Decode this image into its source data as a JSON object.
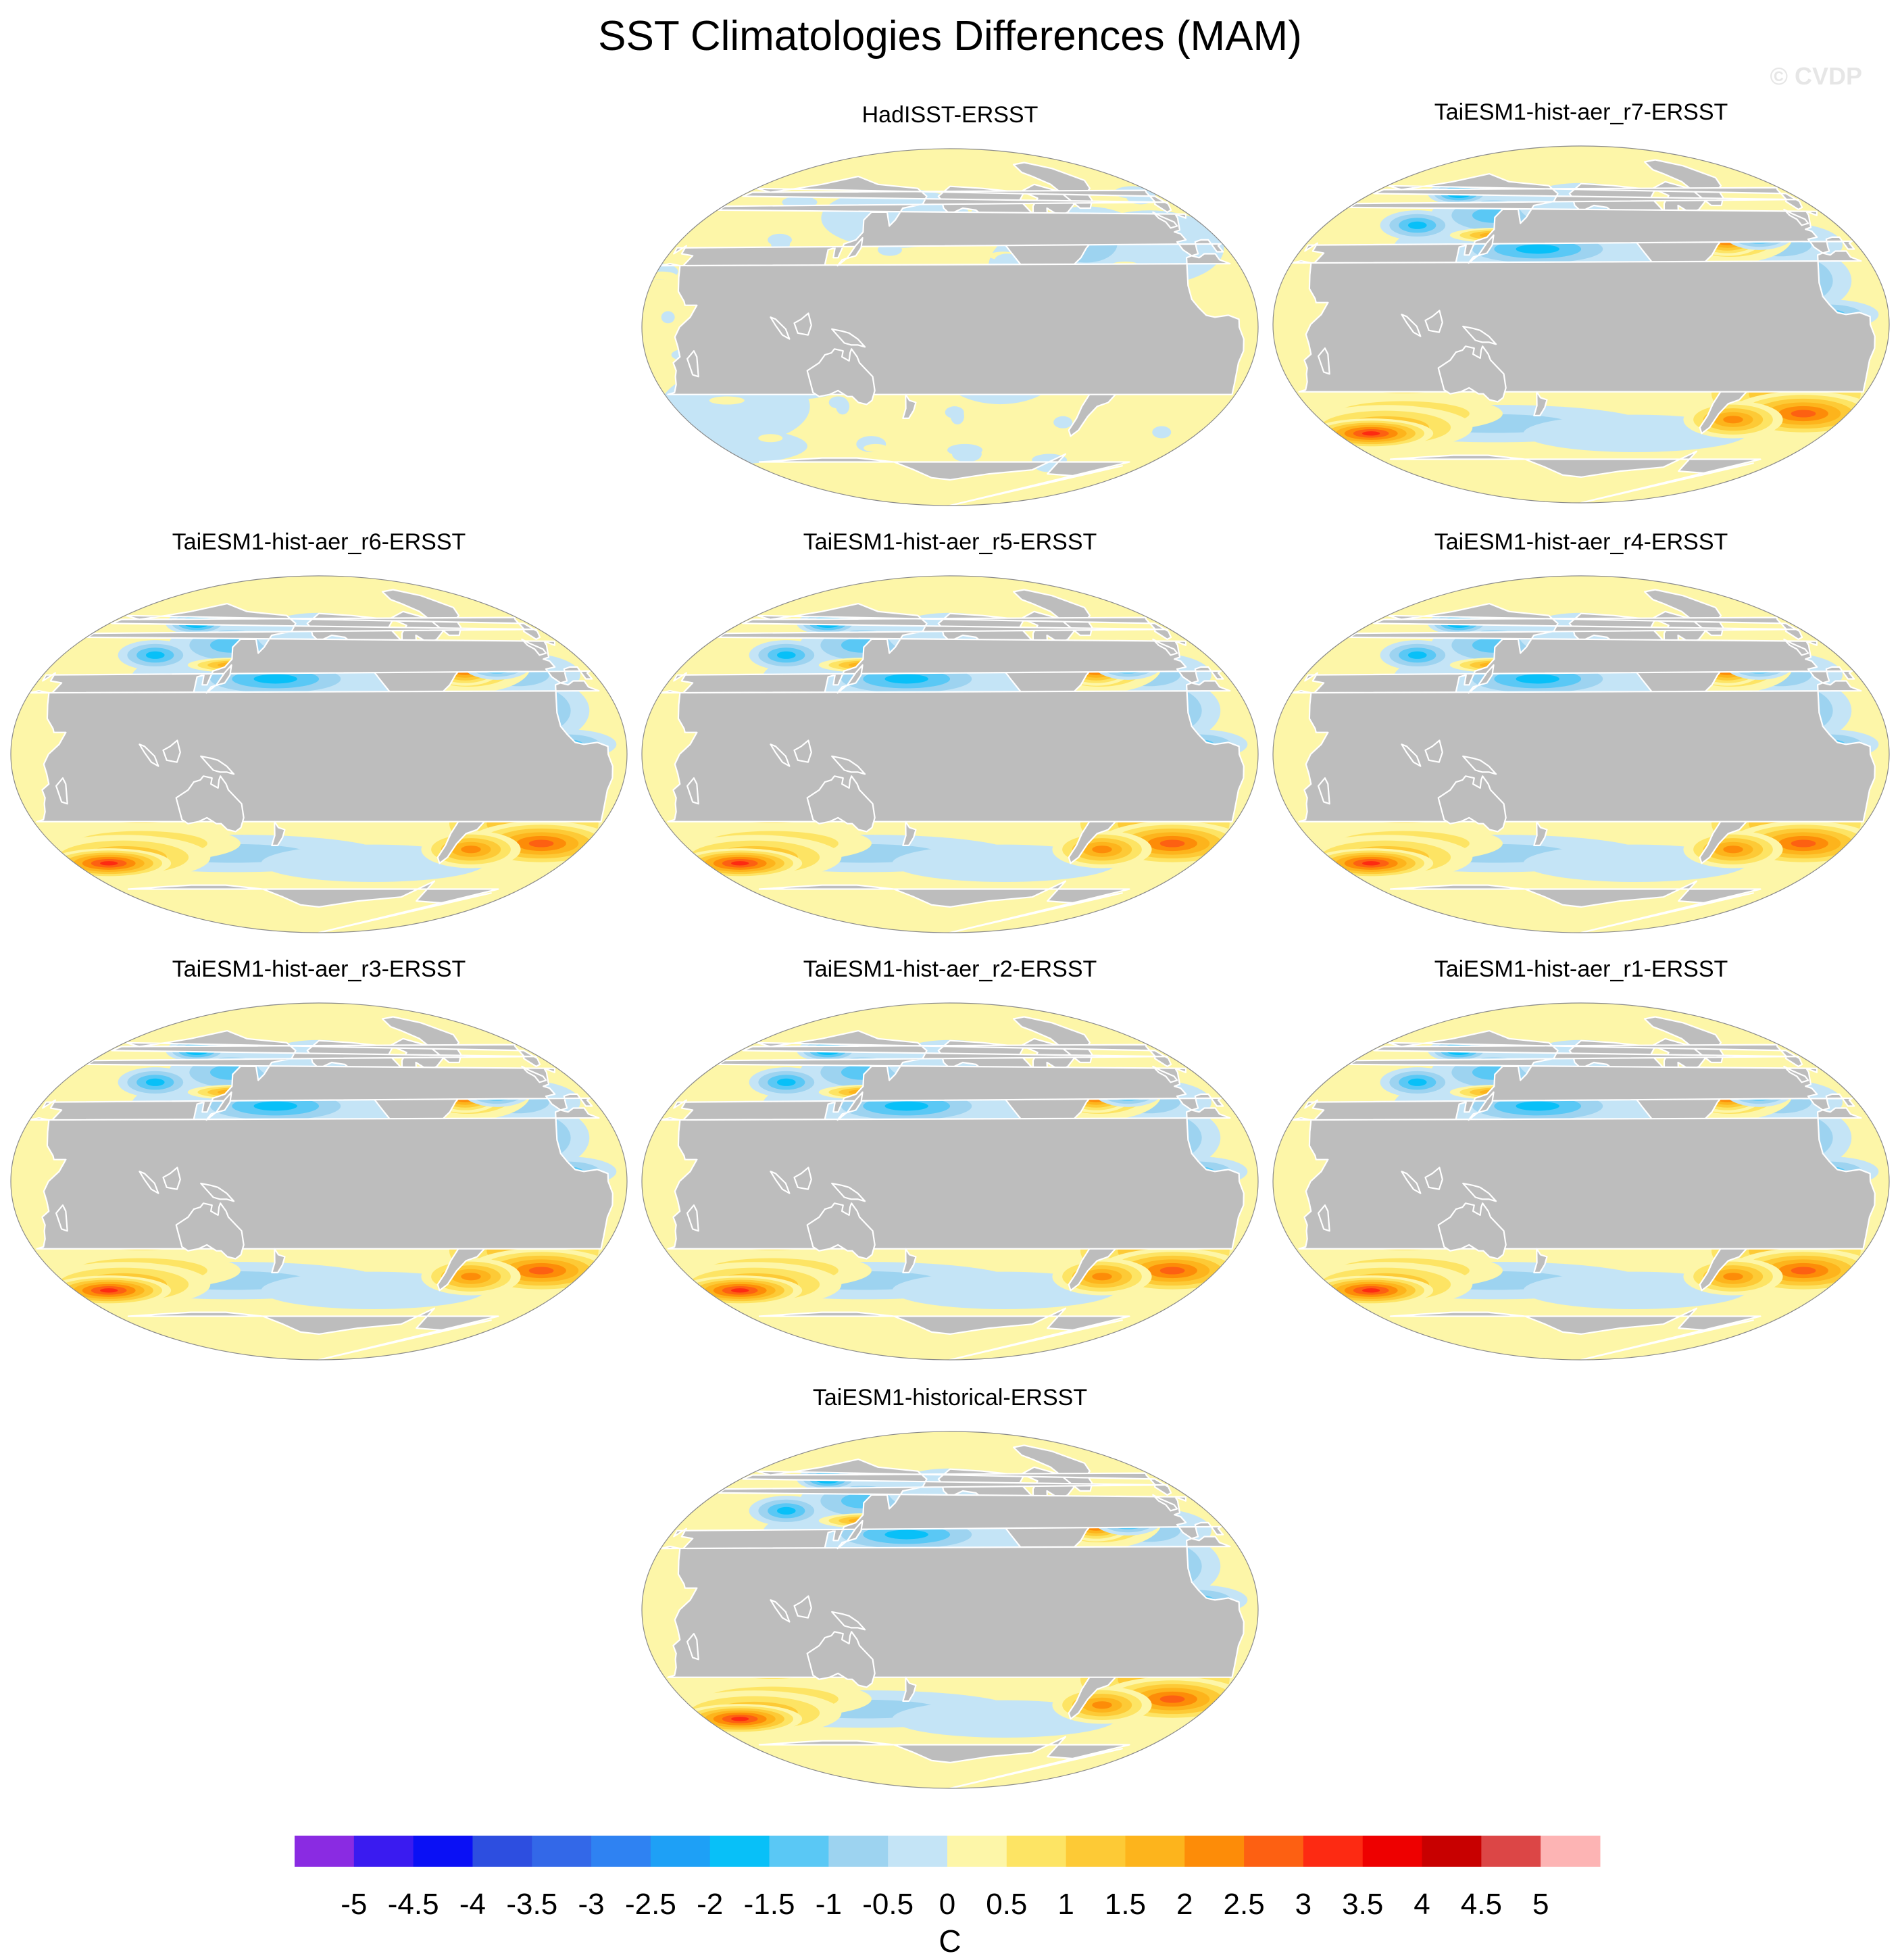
{
  "title": "SST Climatologies Differences (MAM)",
  "watermark": "© CVDP",
  "chart_data": {
    "type": "heatmap",
    "projection": "robinson-like, Pacific-centered global maps",
    "colorbar": {
      "label": "C",
      "ticks": [
        "-5",
        "-4.5",
        "-4",
        "-3.5",
        "-3",
        "-2.5",
        "-2",
        "-1.5",
        "-1",
        "-0.5",
        "0",
        "0.5",
        "1",
        "1.5",
        "2",
        "2.5",
        "3",
        "3.5",
        "4",
        "4.5",
        "5"
      ],
      "levels": [
        -5,
        -4.5,
        -4,
        -3.5,
        -3,
        -2.5,
        -2,
        -1.5,
        -1,
        -0.5,
        0,
        0.5,
        1,
        1.5,
        2,
        2.5,
        3,
        3.5,
        4,
        4.5,
        5
      ],
      "colors": [
        "#8a2be2",
        "#3a1bf0",
        "#0a10f5",
        "#2d4ee0",
        "#3368e8",
        "#2f82f2",
        "#1ea0f6",
        "#08c0f8",
        "#5ac8f5",
        "#9dd3f0",
        "#c4e4f6",
        "#fdf6a8",
        "#fde464",
        "#fdca36",
        "#fdb41c",
        "#fd8c08",
        "#fd6012",
        "#fd2a12",
        "#ee0000",
        "#c80000",
        "#dc4646",
        "#fdb4b4"
      ],
      "min": -5,
      "max": 5
    },
    "panels": [
      {
        "title": "HadISST-ERSST",
        "pattern": "small"
      },
      {
        "title": "TaiESM1-hist-aer_r7-ERSST",
        "pattern": "model"
      },
      {
        "title": "TaiESM1-hist-aer_r6-ERSST",
        "pattern": "model"
      },
      {
        "title": "TaiESM1-hist-aer_r5-ERSST",
        "pattern": "model"
      },
      {
        "title": "TaiESM1-hist-aer_r4-ERSST",
        "pattern": "model"
      },
      {
        "title": "TaiESM1-hist-aer_r3-ERSST",
        "pattern": "model"
      },
      {
        "title": "TaiESM1-hist-aer_r2-ERSST",
        "pattern": "model"
      },
      {
        "title": "TaiESM1-hist-aer_r1-ERSST",
        "pattern": "model"
      },
      {
        "title": "TaiESM1-historical-ERSST",
        "pattern": "model"
      }
    ]
  }
}
